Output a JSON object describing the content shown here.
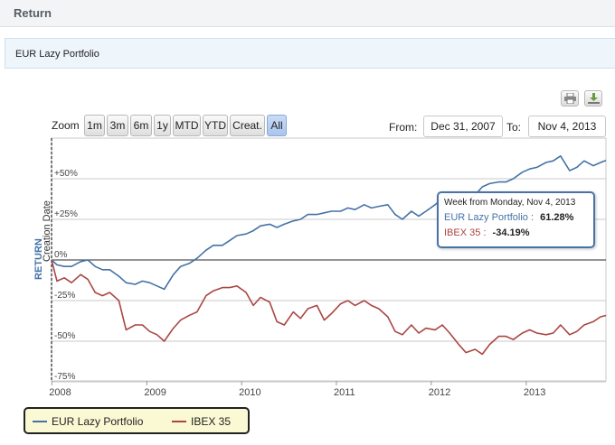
{
  "header": {
    "title": "Return"
  },
  "tab": {
    "label": "EUR Lazy Portfolio"
  },
  "export": {
    "print_icon": "print-icon",
    "download_icon": "download-icon"
  },
  "zoom": {
    "label": "Zoom",
    "buttons": [
      "1m",
      "3m",
      "6m",
      "1y",
      "MTD",
      "YTD",
      "Creat.",
      "All"
    ],
    "active": "All"
  },
  "range": {
    "from_label": "From:",
    "from_value": "Dec 31, 2007",
    "to_label": "To:",
    "to_value": "Nov 4, 2013"
  },
  "tooltip": {
    "header": "Week from Monday, Nov 4, 2013",
    "rows": [
      {
        "name": "EUR Lazy Portfolio",
        "value": "61.28%",
        "color": "#4572a7"
      },
      {
        "name": "IBEX 35",
        "value": "-34.19%",
        "color": "#aa4643"
      }
    ]
  },
  "legend": {
    "items": [
      {
        "name": "EUR Lazy Portfolio",
        "color": "#4572a7"
      },
      {
        "name": "IBEX 35",
        "color": "#aa4643"
      }
    ]
  },
  "chart_data": {
    "type": "line",
    "ylabel": "RETURN",
    "y_unit": "%",
    "ylim": [
      -80,
      70
    ],
    "yticks": [
      -75,
      -50,
      -25,
      0,
      25,
      50
    ],
    "ytick_labels": [
      "-75%",
      "-50%",
      "-25%",
      "0%",
      "+25%",
      "+50%"
    ],
    "xlim": [
      "2007-12-31",
      "2013-11-04"
    ],
    "xticks": [
      "2008-01-01",
      "2009-01-01",
      "2010-01-01",
      "2011-01-01",
      "2012-01-01",
      "2013-01-01"
    ],
    "xtick_labels": [
      "2008",
      "2009",
      "2010",
      "2011",
      "2012",
      "2013"
    ],
    "plot_band_label": "Creation Date",
    "series": [
      {
        "name": "EUR Lazy Portfolio",
        "color": "#4572a7",
        "points": [
          [
            "2007-12-31",
            0
          ],
          [
            "2008-01-21",
            -3
          ],
          [
            "2008-02-18",
            -4
          ],
          [
            "2008-03-17",
            -4
          ],
          [
            "2008-04-21",
            -1
          ],
          [
            "2008-05-19",
            0
          ],
          [
            "2008-06-16",
            -4
          ],
          [
            "2008-07-14",
            -6
          ],
          [
            "2008-08-11",
            -6
          ],
          [
            "2008-09-15",
            -10
          ],
          [
            "2008-10-13",
            -14
          ],
          [
            "2008-11-17",
            -15
          ],
          [
            "2008-12-15",
            -13
          ],
          [
            "2009-01-12",
            -14
          ],
          [
            "2009-02-09",
            -16
          ],
          [
            "2009-03-09",
            -18
          ],
          [
            "2009-04-13",
            -9
          ],
          [
            "2009-05-11",
            -4
          ],
          [
            "2009-06-15",
            -2
          ],
          [
            "2009-07-13",
            1
          ],
          [
            "2009-08-17",
            6
          ],
          [
            "2009-09-14",
            9
          ],
          [
            "2009-10-19",
            9
          ],
          [
            "2009-11-16",
            12
          ],
          [
            "2009-12-14",
            15
          ],
          [
            "2010-01-18",
            16
          ],
          [
            "2010-02-15",
            18
          ],
          [
            "2010-03-15",
            21
          ],
          [
            "2010-04-19",
            22
          ],
          [
            "2010-05-17",
            20
          ],
          [
            "2010-06-14",
            22
          ],
          [
            "2010-07-19",
            24
          ],
          [
            "2010-08-16",
            25
          ],
          [
            "2010-09-13",
            28
          ],
          [
            "2010-10-18",
            28
          ],
          [
            "2010-11-15",
            29
          ],
          [
            "2010-12-13",
            30
          ],
          [
            "2011-01-17",
            30
          ],
          [
            "2011-02-14",
            32
          ],
          [
            "2011-03-14",
            31
          ],
          [
            "2011-04-18",
            34
          ],
          [
            "2011-05-16",
            32
          ],
          [
            "2011-06-13",
            33
          ],
          [
            "2011-07-18",
            34
          ],
          [
            "2011-08-15",
            28
          ],
          [
            "2011-09-12",
            25
          ],
          [
            "2011-10-17",
            30
          ],
          [
            "2011-11-14",
            27
          ],
          [
            "2011-12-12",
            30
          ],
          [
            "2012-01-16",
            34
          ],
          [
            "2012-02-13",
            38
          ],
          [
            "2012-03-12",
            41
          ],
          [
            "2012-04-16",
            38
          ],
          [
            "2012-05-14",
            35
          ],
          [
            "2012-06-18",
            40
          ],
          [
            "2012-07-16",
            45
          ],
          [
            "2012-08-13",
            47
          ],
          [
            "2012-09-17",
            48
          ],
          [
            "2012-10-15",
            48
          ],
          [
            "2012-11-12",
            50
          ],
          [
            "2012-12-17",
            54
          ],
          [
            "2013-01-14",
            56
          ],
          [
            "2013-02-11",
            57
          ],
          [
            "2013-03-18",
            60
          ],
          [
            "2013-04-15",
            61
          ],
          [
            "2013-05-13",
            64
          ],
          [
            "2013-06-17",
            55
          ],
          [
            "2013-07-15",
            57
          ],
          [
            "2013-08-12",
            61
          ],
          [
            "2013-09-16",
            58
          ],
          [
            "2013-10-14",
            60
          ],
          [
            "2013-11-04",
            61.28
          ]
        ]
      },
      {
        "name": "IBEX 35",
        "color": "#aa4643",
        "points": [
          [
            "2007-12-31",
            0
          ],
          [
            "2008-01-21",
            -13
          ],
          [
            "2008-02-18",
            -11
          ],
          [
            "2008-03-17",
            -14
          ],
          [
            "2008-04-21",
            -9
          ],
          [
            "2008-05-19",
            -12
          ],
          [
            "2008-06-16",
            -20
          ],
          [
            "2008-07-14",
            -22
          ],
          [
            "2008-08-11",
            -20
          ],
          [
            "2008-09-15",
            -25
          ],
          [
            "2008-10-13",
            -43
          ],
          [
            "2008-11-17",
            -40
          ],
          [
            "2008-12-15",
            -40
          ],
          [
            "2009-01-12",
            -44
          ],
          [
            "2009-02-09",
            -46
          ],
          [
            "2009-03-09",
            -50
          ],
          [
            "2009-04-13",
            -42
          ],
          [
            "2009-05-11",
            -37
          ],
          [
            "2009-06-15",
            -34
          ],
          [
            "2009-07-13",
            -32
          ],
          [
            "2009-08-17",
            -22
          ],
          [
            "2009-09-14",
            -19
          ],
          [
            "2009-10-19",
            -17
          ],
          [
            "2009-11-16",
            -17
          ],
          [
            "2009-12-14",
            -16
          ],
          [
            "2010-01-18",
            -20
          ],
          [
            "2010-02-15",
            -28
          ],
          [
            "2010-03-15",
            -23
          ],
          [
            "2010-04-19",
            -26
          ],
          [
            "2010-05-17",
            -38
          ],
          [
            "2010-06-14",
            -40
          ],
          [
            "2010-07-19",
            -32
          ],
          [
            "2010-08-16",
            -36
          ],
          [
            "2010-09-13",
            -30
          ],
          [
            "2010-10-18",
            -28
          ],
          [
            "2010-11-15",
            -37
          ],
          [
            "2010-12-13",
            -33
          ],
          [
            "2011-01-17",
            -27
          ],
          [
            "2011-02-14",
            -25
          ],
          [
            "2011-03-14",
            -28
          ],
          [
            "2011-04-18",
            -25
          ],
          [
            "2011-05-16",
            -28
          ],
          [
            "2011-06-13",
            -30
          ],
          [
            "2011-07-18",
            -35
          ],
          [
            "2011-08-15",
            -44
          ],
          [
            "2011-09-12",
            -46
          ],
          [
            "2011-10-17",
            -40
          ],
          [
            "2011-11-14",
            -45
          ],
          [
            "2011-12-12",
            -42
          ],
          [
            "2012-01-16",
            -43
          ],
          [
            "2012-02-13",
            -40
          ],
          [
            "2012-03-12",
            -45
          ],
          [
            "2012-04-16",
            -52
          ],
          [
            "2012-05-14",
            -57
          ],
          [
            "2012-06-18",
            -55
          ],
          [
            "2012-07-16",
            -58
          ],
          [
            "2012-08-13",
            -52
          ],
          [
            "2012-09-17",
            -47
          ],
          [
            "2012-10-15",
            -47
          ],
          [
            "2012-11-12",
            -49
          ],
          [
            "2012-12-17",
            -45
          ],
          [
            "2013-01-14",
            -43
          ],
          [
            "2013-02-11",
            -45
          ],
          [
            "2013-03-18",
            -46
          ],
          [
            "2013-04-15",
            -45
          ],
          [
            "2013-05-13",
            -40
          ],
          [
            "2013-06-17",
            -46
          ],
          [
            "2013-07-15",
            -44
          ],
          [
            "2013-08-12",
            -40
          ],
          [
            "2013-09-16",
            -38
          ],
          [
            "2013-10-14",
            -35
          ],
          [
            "2013-11-04",
            -34.19
          ]
        ]
      }
    ]
  }
}
